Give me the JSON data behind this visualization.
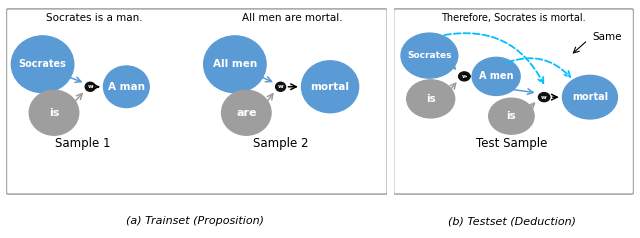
{
  "fig_width": 6.4,
  "fig_height": 2.38,
  "bg_color": "#ffffff",
  "blue_color": "#5b9bd5",
  "gray_color": "#9e9e9e",
  "black_color": "#000000",
  "cyan_color": "#00c0ff",
  "caption_left": "(a) Trainset (Proposition)",
  "caption_right": "(b) Testset (Deduction)",
  "panel1_title": "Socrates is a man.",
  "panel2_title": "All men are mortal.",
  "panel3_title": "Therefore, Socrates is mortal.",
  "sample1_label": "Sample 1",
  "sample2_label": "Sample 2",
  "test_label": "Test Sample",
  "same_label": "Same"
}
